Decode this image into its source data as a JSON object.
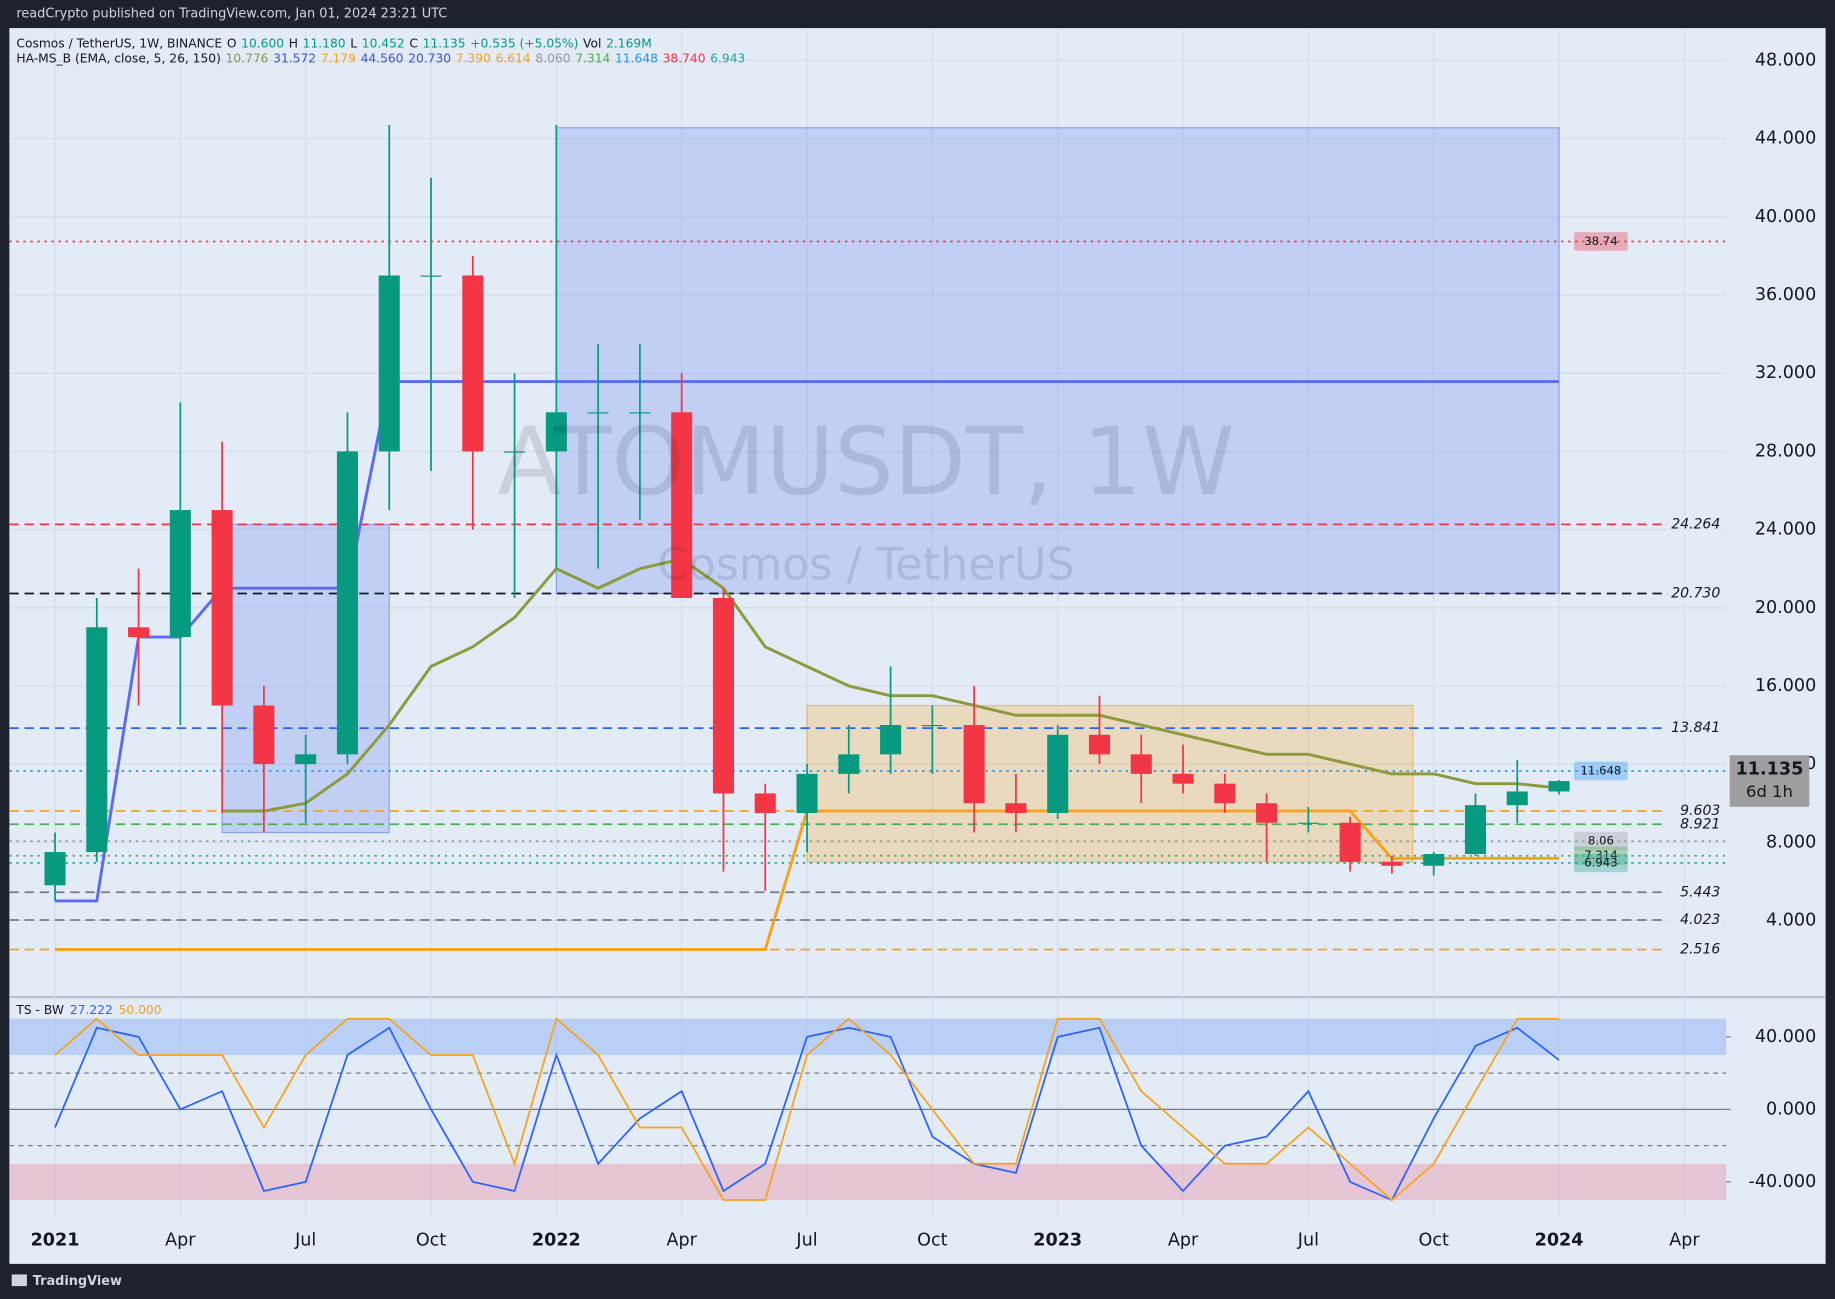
{
  "header": {
    "published": "readCrypto published on TradingView.com, Jan 01, 2024 23:21 UTC",
    "brand": "TradingView"
  },
  "chart_data": [
    {
      "type": "candlestick",
      "title": "ATOMUSDT, 1W",
      "subtitle": "Cosmos / TetherUS",
      "legend": [
        {
          "text": "Cosmos / TetherUS, 1W, BINANCE",
          "color": "#131722"
        },
        {
          "text": "O",
          "color": "#131722"
        },
        {
          "text": "10.600",
          "color": "#089981"
        },
        {
          "text": "H",
          "color": "#131722"
        },
        {
          "text": "11.180",
          "color": "#089981"
        },
        {
          "text": "L",
          "color": "#131722"
        },
        {
          "text": "10.452",
          "color": "#089981"
        },
        {
          "text": "C",
          "color": "#131722"
        },
        {
          "text": "11.135",
          "color": "#089981"
        },
        {
          "text": "+0.535 (+5.05%)",
          "color": "#089981"
        },
        {
          "text": "Vol",
          "color": "#131722"
        },
        {
          "text": "2.169M",
          "color": "#089981"
        }
      ],
      "indicator": [
        {
          "text": "HA-MS_B (EMA, close, 5, 26, 150)",
          "color": "#131722"
        },
        {
          "text": "10.776",
          "color": "#8d9a3c"
        },
        {
          "text": "31.572",
          "color": "#3f51d8"
        },
        {
          "text": "7.179",
          "color": "#f7a21b"
        },
        {
          "text": "44.560",
          "color": "#3f51d8"
        },
        {
          "text": "20.730",
          "color": "#3f51d8"
        },
        {
          "text": "7.390",
          "color": "#f7a21b"
        },
        {
          "text": "6.614",
          "color": "#f7a21b"
        },
        {
          "text": "8.060",
          "color": "#999999"
        },
        {
          "text": "7.314",
          "color": "#4caf50"
        },
        {
          "text": "11.648",
          "color": "#2196f3"
        },
        {
          "text": "38.740",
          "color": "#f23645"
        },
        {
          "text": "6.943",
          "color": "#26a69a"
        }
      ],
      "categories": [
        "2021",
        null,
        null,
        "Apr",
        null,
        null,
        "Jul",
        null,
        null,
        "Oct",
        null,
        null,
        "2022",
        null,
        null,
        "Apr",
        null,
        null,
        "Jul",
        null,
        null,
        "Oct",
        null,
        null,
        "2023",
        null,
        null,
        "Apr",
        null,
        null,
        "Jul",
        null,
        null,
        "Oct",
        null,
        null,
        "2024",
        null,
        null,
        "Apr"
      ],
      "open": [
        5.8,
        7.5,
        19,
        18.5,
        25,
        15,
        12,
        12.5,
        28,
        37,
        37,
        28,
        28,
        30,
        30,
        30,
        20.5,
        10.5,
        9.5,
        11.5,
        12.5,
        14,
        14,
        10,
        9.5,
        13.5,
        12.5,
        11.5,
        11,
        10,
        9,
        9,
        7,
        6.8,
        7.4,
        9.9,
        10.6,
        null,
        null,
        null
      ],
      "high": [
        8.5,
        20.5,
        22,
        30.5,
        28.5,
        16,
        13.5,
        30,
        44.7,
        42,
        38,
        32,
        44.7,
        33.5,
        33.5,
        32,
        21,
        11,
        12,
        14,
        17,
        15,
        16,
        11.5,
        14,
        15.5,
        13.5,
        13,
        11.5,
        10.5,
        9.8,
        9.3,
        7.3,
        7.5,
        10.5,
        12.2,
        11.18,
        null,
        null,
        null
      ],
      "low": [
        5,
        7,
        15,
        14,
        9.5,
        8.5,
        9,
        12,
        25,
        27,
        24,
        20.5,
        22,
        22,
        24.5,
        20.5,
        6.5,
        5.5,
        7.5,
        10.5,
        11.5,
        11.5,
        8.5,
        8.5,
        9.2,
        12,
        10,
        10.5,
        9.5,
        7,
        8.5,
        6.5,
        6.4,
        6.3,
        7.3,
        9,
        10.452,
        null,
        null,
        null
      ],
      "close": [
        7.5,
        19,
        18.5,
        25,
        15,
        12,
        12.5,
        28,
        37,
        37,
        28,
        28,
        30,
        30,
        30,
        20.5,
        10.5,
        9.5,
        11.5,
        12.5,
        14,
        14,
        10,
        9.5,
        13.5,
        12.5,
        11.5,
        11,
        10,
        9,
        9,
        7,
        6.8,
        7.4,
        9.9,
        10.6,
        11.135,
        null,
        null,
        null
      ],
      "up_color": "#089981",
      "down_color": "#f23645",
      "ylim": [
        0.2,
        49.6
      ],
      "yticks": [
        {
          "value": 4,
          "label": "4.000"
        },
        {
          "value": 8,
          "label": "8.000"
        },
        {
          "value": 12,
          "label": "12.000"
        },
        {
          "value": 16,
          "label": "16.000"
        },
        {
          "value": 20,
          "label": "20.000"
        },
        {
          "value": 24,
          "label": "24.000"
        },
        {
          "value": 28,
          "label": "28.000"
        },
        {
          "value": 32,
          "label": "32.000"
        },
        {
          "value": 36,
          "label": "36.000"
        },
        {
          "value": 40,
          "label": "40.000"
        },
        {
          "value": 44,
          "label": "44.000"
        },
        {
          "value": 48,
          "label": "48.000"
        }
      ],
      "lines": [
        {
          "color": "#8d9a3c",
          "values": [
            null,
            null,
            null,
            null,
            9.6,
            9.6,
            10,
            11.5,
            14,
            17,
            18,
            19.5,
            22,
            21,
            22,
            22.5,
            21,
            18,
            17,
            16,
            15.5,
            15.5,
            15,
            14.5,
            14.5,
            14.5,
            14,
            13.5,
            13,
            12.5,
            12.5,
            12,
            11.5,
            11.5,
            11,
            11,
            10.776,
            null,
            null,
            null
          ]
        },
        {
          "color": "#5b6cf0",
          "values": [
            5,
            5,
            18.5,
            18.5,
            21,
            21,
            21,
            21,
            31.572,
            31.572,
            31.572,
            31.572,
            31.572,
            31.572,
            31.572,
            31.572,
            31.572,
            31.572,
            31.572,
            31.572,
            31.572,
            31.572,
            31.572,
            31.572,
            31.572,
            31.572,
            31.572,
            31.572,
            31.572,
            31.572,
            31.572,
            31.572,
            31.572,
            31.572,
            31.572,
            31.572,
            31.572,
            null,
            null,
            null
          ]
        },
        {
          "color": "#f7a21b",
          "values": [
            2.516,
            2.516,
            2.516,
            2.516,
            2.516,
            2.516,
            2.516,
            2.516,
            2.516,
            2.516,
            2.516,
            2.516,
            2.516,
            2.516,
            2.516,
            2.516,
            2.516,
            2.516,
            9.603,
            9.603,
            9.603,
            9.603,
            9.603,
            9.603,
            9.603,
            9.603,
            9.603,
            9.603,
            9.603,
            9.603,
            9.603,
            9.603,
            7.179,
            7.179,
            7.179,
            7.179,
            7.179,
            null,
            null,
            null
          ]
        }
      ],
      "zones": [
        {
          "x": [
            12,
            36
          ],
          "y": [
            20.73,
            44.56
          ],
          "color": "#5b7cf5"
        },
        {
          "x": [
            4,
            8
          ],
          "y": [
            8.5,
            24.264
          ],
          "color": "#5b7cf5"
        },
        {
          "x": [
            18,
            32.5
          ],
          "y": [
            7.0,
            15.0
          ],
          "color": "#f7a21b"
        }
      ],
      "levels": [
        {
          "value": 38.74,
          "label": "38.74",
          "color": "#f23645",
          "badge": true
        },
        {
          "value": 24.264,
          "label": "24.264",
          "color": "#f23645",
          "badge": false
        },
        {
          "value": 20.73,
          "label": "20.730",
          "color": "#131722",
          "badge": false
        },
        {
          "value": 13.841,
          "label": "13.841",
          "color": "#2962ff",
          "badge": false
        },
        {
          "value": 11.648,
          "label": "11.648",
          "color": "#2196f3",
          "badge": true
        },
        {
          "value": 9.603,
          "label": "9.603",
          "color": "#f7a21b",
          "badge": false
        },
        {
          "value": 8.921,
          "label": "8.921",
          "color": "#4caf50",
          "badge": false
        },
        {
          "value": 8.06,
          "label": "8.06",
          "color": "#9e9e9e",
          "badge": true
        },
        {
          "value": 7.314,
          "label": "7.314",
          "color": "#4caf50",
          "badge": true
        },
        {
          "value": 6.943,
          "label": "6.943",
          "color": "#26a69a",
          "badge": true
        },
        {
          "value": 5.443,
          "label": "5.443",
          "color": "#787b86",
          "badge": false
        },
        {
          "value": 4.023,
          "label": "4.023",
          "color": "#787b86",
          "badge": false
        },
        {
          "value": 2.516,
          "label": "2.516",
          "color": "#f7a21b",
          "badge": false
        }
      ],
      "last_price": {
        "value": 11.135,
        "label": "11.135",
        "countdown": "6d 1h"
      }
    },
    {
      "type": "line",
      "title": "TS - BW",
      "ylim": [
        -59.4,
        60
      ],
      "yticks": [
        {
          "value": 40,
          "label": "40.000"
        },
        {
          "value": 0,
          "label": "0.000"
        },
        {
          "value": -40,
          "label": "-40.000"
        }
      ],
      "bands": [
        {
          "y": [
            30,
            50
          ],
          "color": "#90b4f5"
        },
        {
          "y": [
            -50,
            -30
          ],
          "color": "#eaa2b4"
        }
      ],
      "ref_lines": [
        20,
        0,
        -20
      ],
      "series": [
        {
          "color": "#2962ff",
          "legend_value": "27.222",
          "values": [
            -10,
            45,
            40,
            0,
            10,
            -45,
            -40,
            30,
            45,
            0,
            -40,
            -45,
            30,
            -30,
            -5,
            10,
            -45,
            -30,
            40,
            45,
            40,
            -15,
            -30,
            -35,
            40,
            45,
            -20,
            -45,
            -20,
            -15,
            10,
            -40,
            -50,
            -5,
            35,
            45,
            27.222,
            null,
            null,
            null
          ]
        },
        {
          "color": "#f7a21b",
          "legend_value": "50.000",
          "values": [
            30,
            50,
            30,
            30,
            30,
            -10,
            30,
            50,
            50,
            30,
            30,
            -30,
            50,
            30,
            -10,
            -10,
            -50,
            -50,
            30,
            50,
            30,
            0,
            -30,
            -30,
            50,
            50,
            10,
            -10,
            -30,
            -30,
            -10,
            -30,
            -50,
            -30,
            10,
            50,
            50,
            null,
            null,
            null
          ]
        }
      ]
    }
  ]
}
